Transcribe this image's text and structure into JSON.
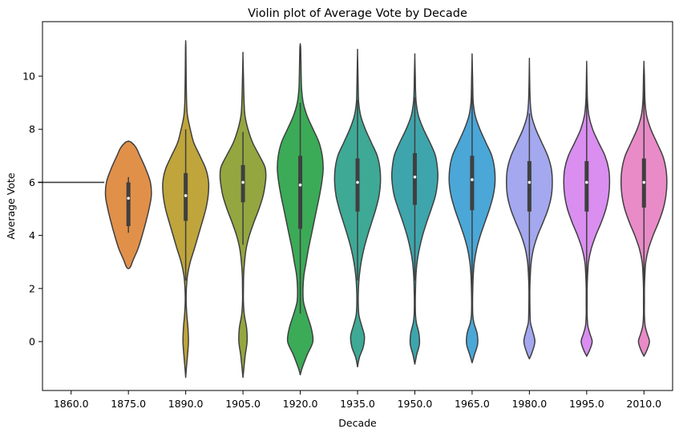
{
  "chart_data": {
    "type": "violin",
    "title": "Violin plot of Average Vote by Decade",
    "xlabel": "Decade",
    "ylabel": "Average Vote",
    "ylim": [
      -2.0,
      11.8
    ],
    "yticks": [
      "0",
      "2",
      "4",
      "6",
      "8",
      "10"
    ],
    "grid": false,
    "legend": "none",
    "categories": [
      "1860.0",
      "1875.0",
      "1890.0",
      "1905.0",
      "1920.0",
      "1935.0",
      "1950.0",
      "1965.0",
      "1980.0",
      "1995.0",
      "2010.0"
    ],
    "colors": [
      "#8b8b8b",
      "#e1904a",
      "#bfa53b",
      "#94a640",
      "#3bab57",
      "#3ea995",
      "#3ea5ac",
      "#4aa7d8",
      "#a3a8ef",
      "#d98ef0",
      "#e98bc7"
    ],
    "violins": [
      {
        "category": "1860.0",
        "min": 6.0,
        "max": 6.0,
        "q1": 6.0,
        "median": 6.0,
        "q3": 6.0,
        "whisker_low": 6.0,
        "whisker_high": 6.0,
        "profile": [
          [
            6.0,
            1.0
          ]
        ]
      },
      {
        "category": "1875.0",
        "min": 2.75,
        "max": 7.55,
        "q1": 4.35,
        "median": 5.4,
        "q3": 6.0,
        "whisker_low": 4.1,
        "whisker_high": 6.2,
        "profile": [
          [
            2.75,
            0.0
          ],
          [
            2.8,
            0.08
          ],
          [
            3.1,
            0.22
          ],
          [
            3.5,
            0.42
          ],
          [
            4.0,
            0.6
          ],
          [
            4.5,
            0.76
          ],
          [
            5.0,
            0.9
          ],
          [
            5.5,
            1.0
          ],
          [
            6.0,
            0.96
          ],
          [
            6.5,
            0.76
          ],
          [
            7.0,
            0.5
          ],
          [
            7.3,
            0.34
          ],
          [
            7.5,
            0.14
          ],
          [
            7.55,
            0.0
          ]
        ]
      },
      {
        "category": "1890.0",
        "min": -1.35,
        "max": 11.3,
        "q1": 4.55,
        "median": 5.5,
        "q3": 6.35,
        "whisker_low": 2.3,
        "whisker_high": 8.0,
        "profile": [
          [
            -1.35,
            0.0
          ],
          [
            -1.0,
            0.03
          ],
          [
            -0.5,
            0.08
          ],
          [
            0.0,
            0.12
          ],
          [
            0.5,
            0.1
          ],
          [
            1.0,
            0.05
          ],
          [
            1.5,
            0.02
          ],
          [
            2.0,
            0.03
          ],
          [
            2.5,
            0.08
          ],
          [
            3.0,
            0.2
          ],
          [
            3.5,
            0.38
          ],
          [
            4.0,
            0.55
          ],
          [
            4.5,
            0.72
          ],
          [
            5.0,
            0.88
          ],
          [
            5.5,
            0.98
          ],
          [
            6.0,
            1.0
          ],
          [
            6.5,
            0.88
          ],
          [
            7.0,
            0.62
          ],
          [
            7.5,
            0.35
          ],
          [
            8.0,
            0.2
          ],
          [
            8.5,
            0.08
          ],
          [
            9.0,
            0.04
          ],
          [
            10.0,
            0.02
          ],
          [
            11.0,
            0.01
          ],
          [
            11.3,
            0.0
          ]
        ]
      },
      {
        "category": "1905.0",
        "min": -1.35,
        "max": 10.8,
        "q1": 5.25,
        "median": 6.0,
        "q3": 6.65,
        "whisker_low": 3.65,
        "whisker_high": 7.9,
        "profile": [
          [
            -1.35,
            0.0
          ],
          [
            -1.0,
            0.04
          ],
          [
            -0.5,
            0.1
          ],
          [
            0.0,
            0.18
          ],
          [
            0.5,
            0.16
          ],
          [
            1.0,
            0.06
          ],
          [
            1.5,
            0.02
          ],
          [
            2.0,
            0.02
          ],
          [
            2.5,
            0.03
          ],
          [
            3.0,
            0.07
          ],
          [
            3.5,
            0.14
          ],
          [
            4.0,
            0.28
          ],
          [
            4.5,
            0.48
          ],
          [
            5.0,
            0.7
          ],
          [
            5.5,
            0.88
          ],
          [
            6.0,
            0.98
          ],
          [
            6.3,
            1.0
          ],
          [
            6.6,
            0.95
          ],
          [
            7.0,
            0.72
          ],
          [
            7.5,
            0.42
          ],
          [
            8.0,
            0.22
          ],
          [
            8.5,
            0.09
          ],
          [
            9.0,
            0.05
          ],
          [
            10.0,
            0.02
          ],
          [
            10.8,
            0.0
          ]
        ]
      },
      {
        "category": "1920.0",
        "min": -1.25,
        "max": 11.2,
        "q1": 4.25,
        "median": 5.9,
        "q3": 7.0,
        "whisker_low": 1.05,
        "whisker_high": 9.0,
        "profile": [
          [
            -1.25,
            0.0
          ],
          [
            -1.0,
            0.08
          ],
          [
            -0.5,
            0.3
          ],
          [
            0.0,
            0.55
          ],
          [
            0.5,
            0.48
          ],
          [
            1.0,
            0.3
          ],
          [
            1.5,
            0.14
          ],
          [
            2.0,
            0.12
          ],
          [
            2.5,
            0.16
          ],
          [
            3.0,
            0.26
          ],
          [
            3.5,
            0.36
          ],
          [
            4.0,
            0.48
          ],
          [
            4.5,
            0.6
          ],
          [
            5.0,
            0.72
          ],
          [
            5.5,
            0.84
          ],
          [
            6.0,
            0.94
          ],
          [
            6.5,
            1.0
          ],
          [
            7.0,
            0.96
          ],
          [
            7.5,
            0.82
          ],
          [
            8.0,
            0.56
          ],
          [
            8.5,
            0.3
          ],
          [
            9.0,
            0.13
          ],
          [
            9.5,
            0.06
          ],
          [
            10.0,
            0.04
          ],
          [
            11.0,
            0.02
          ],
          [
            11.2,
            0.0
          ]
        ]
      },
      {
        "category": "1935.0",
        "min": -0.95,
        "max": 10.9,
        "q1": 4.9,
        "median": 6.0,
        "q3": 6.9,
        "whisker_low": 2.3,
        "whisker_high": 9.1,
        "profile": [
          [
            -0.95,
            0.0
          ],
          [
            -0.6,
            0.08
          ],
          [
            -0.2,
            0.25
          ],
          [
            0.2,
            0.3
          ],
          [
            0.6,
            0.18
          ],
          [
            1.0,
            0.06
          ],
          [
            1.5,
            0.03
          ],
          [
            2.0,
            0.04
          ],
          [
            2.5,
            0.08
          ],
          [
            3.0,
            0.16
          ],
          [
            3.5,
            0.28
          ],
          [
            4.0,
            0.44
          ],
          [
            4.5,
            0.62
          ],
          [
            5.0,
            0.8
          ],
          [
            5.5,
            0.94
          ],
          [
            6.0,
            1.0
          ],
          [
            6.5,
            0.98
          ],
          [
            7.0,
            0.86
          ],
          [
            7.5,
            0.6
          ],
          [
            8.0,
            0.34
          ],
          [
            8.5,
            0.14
          ],
          [
            9.0,
            0.05
          ],
          [
            9.5,
            0.03
          ],
          [
            10.0,
            0.02
          ],
          [
            10.9,
            0.0
          ]
        ]
      },
      {
        "category": "1950.0",
        "min": -0.85,
        "max": 10.75,
        "q1": 5.15,
        "median": 6.2,
        "q3": 7.1,
        "whisker_low": 2.3,
        "whisker_high": 9.2,
        "profile": [
          [
            -0.85,
            0.0
          ],
          [
            -0.5,
            0.08
          ],
          [
            -0.1,
            0.2
          ],
          [
            0.3,
            0.18
          ],
          [
            0.7,
            0.07
          ],
          [
            1.0,
            0.03
          ],
          [
            1.5,
            0.02
          ],
          [
            2.0,
            0.03
          ],
          [
            2.5,
            0.05
          ],
          [
            3.0,
            0.1
          ],
          [
            3.5,
            0.2
          ],
          [
            4.0,
            0.34
          ],
          [
            4.5,
            0.52
          ],
          [
            5.0,
            0.72
          ],
          [
            5.5,
            0.9
          ],
          [
            6.0,
            0.99
          ],
          [
            6.4,
            1.0
          ],
          [
            7.0,
            0.9
          ],
          [
            7.5,
            0.66
          ],
          [
            8.0,
            0.38
          ],
          [
            8.5,
            0.16
          ],
          [
            9.0,
            0.06
          ],
          [
            9.5,
            0.03
          ],
          [
            10.0,
            0.02
          ],
          [
            10.75,
            0.0
          ]
        ]
      },
      {
        "category": "1965.0",
        "min": -0.8,
        "max": 10.75,
        "q1": 4.95,
        "median": 6.1,
        "q3": 7.0,
        "whisker_low": 1.95,
        "whisker_high": 9.5,
        "profile": [
          [
            -0.8,
            0.0
          ],
          [
            -0.5,
            0.1
          ],
          [
            -0.1,
            0.24
          ],
          [
            0.3,
            0.22
          ],
          [
            0.7,
            0.08
          ],
          [
            1.0,
            0.03
          ],
          [
            1.5,
            0.02
          ],
          [
            2.0,
            0.03
          ],
          [
            2.5,
            0.05
          ],
          [
            3.0,
            0.1
          ],
          [
            3.5,
            0.2
          ],
          [
            4.0,
            0.36
          ],
          [
            4.5,
            0.56
          ],
          [
            5.0,
            0.76
          ],
          [
            5.5,
            0.92
          ],
          [
            6.0,
            1.0
          ],
          [
            6.5,
            0.98
          ],
          [
            7.0,
            0.86
          ],
          [
            7.5,
            0.6
          ],
          [
            8.0,
            0.34
          ],
          [
            8.5,
            0.14
          ],
          [
            9.0,
            0.05
          ],
          [
            9.5,
            0.03
          ],
          [
            10.0,
            0.02
          ],
          [
            10.75,
            0.0
          ]
        ]
      },
      {
        "category": "1980.0",
        "min": -0.65,
        "max": 10.6,
        "q1": 4.9,
        "median": 6.0,
        "q3": 6.8,
        "whisker_low": 2.0,
        "whisker_high": 8.6,
        "profile": [
          [
            -0.65,
            0.0
          ],
          [
            -0.4,
            0.12
          ],
          [
            0.0,
            0.24
          ],
          [
            0.4,
            0.14
          ],
          [
            0.7,
            0.05
          ],
          [
            1.0,
            0.03
          ],
          [
            1.5,
            0.02
          ],
          [
            2.0,
            0.02
          ],
          [
            2.5,
            0.04
          ],
          [
            3.0,
            0.08
          ],
          [
            3.5,
            0.18
          ],
          [
            4.0,
            0.36
          ],
          [
            4.5,
            0.6
          ],
          [
            5.0,
            0.82
          ],
          [
            5.5,
            0.96
          ],
          [
            6.0,
            1.0
          ],
          [
            6.5,
            0.96
          ],
          [
            7.0,
            0.8
          ],
          [
            7.5,
            0.54
          ],
          [
            8.0,
            0.28
          ],
          [
            8.5,
            0.1
          ],
          [
            9.0,
            0.04
          ],
          [
            9.5,
            0.02
          ],
          [
            10.0,
            0.01
          ],
          [
            10.6,
            0.0
          ]
        ]
      },
      {
        "category": "1995.0",
        "min": -0.55,
        "max": 10.5,
        "q1": 4.9,
        "median": 6.0,
        "q3": 6.8,
        "whisker_low": 2.0,
        "whisker_high": 9.2,
        "profile": [
          [
            -0.55,
            0.0
          ],
          [
            -0.3,
            0.14
          ],
          [
            0.0,
            0.24
          ],
          [
            0.3,
            0.14
          ],
          [
            0.6,
            0.05
          ],
          [
            1.0,
            0.02
          ],
          [
            1.5,
            0.02
          ],
          [
            2.0,
            0.02
          ],
          [
            2.5,
            0.04
          ],
          [
            3.0,
            0.08
          ],
          [
            3.5,
            0.2
          ],
          [
            4.0,
            0.4
          ],
          [
            4.5,
            0.64
          ],
          [
            5.0,
            0.84
          ],
          [
            5.5,
            0.96
          ],
          [
            6.0,
            1.0
          ],
          [
            6.5,
            0.96
          ],
          [
            7.0,
            0.8
          ],
          [
            7.5,
            0.52
          ],
          [
            8.0,
            0.26
          ],
          [
            8.5,
            0.1
          ],
          [
            9.0,
            0.04
          ],
          [
            9.5,
            0.02
          ],
          [
            10.0,
            0.01
          ],
          [
            10.5,
            0.0
          ]
        ]
      },
      {
        "category": "2010.0",
        "min": -0.55,
        "max": 10.5,
        "q1": 5.05,
        "median": 6.0,
        "q3": 6.9,
        "whisker_low": 2.1,
        "whisker_high": 9.9,
        "profile": [
          [
            -0.55,
            0.0
          ],
          [
            -0.3,
            0.14
          ],
          [
            0.0,
            0.24
          ],
          [
            0.3,
            0.14
          ],
          [
            0.6,
            0.05
          ],
          [
            1.0,
            0.02
          ],
          [
            1.5,
            0.02
          ],
          [
            2.0,
            0.02
          ],
          [
            2.5,
            0.04
          ],
          [
            3.0,
            0.08
          ],
          [
            3.5,
            0.2
          ],
          [
            4.0,
            0.4
          ],
          [
            4.5,
            0.64
          ],
          [
            5.0,
            0.84
          ],
          [
            5.5,
            0.96
          ],
          [
            6.0,
            1.0
          ],
          [
            6.5,
            0.96
          ],
          [
            7.0,
            0.82
          ],
          [
            7.5,
            0.56
          ],
          [
            8.0,
            0.3
          ],
          [
            8.5,
            0.12
          ],
          [
            9.0,
            0.05
          ],
          [
            9.5,
            0.03
          ],
          [
            10.0,
            0.02
          ],
          [
            10.5,
            0.0
          ]
        ]
      }
    ]
  }
}
